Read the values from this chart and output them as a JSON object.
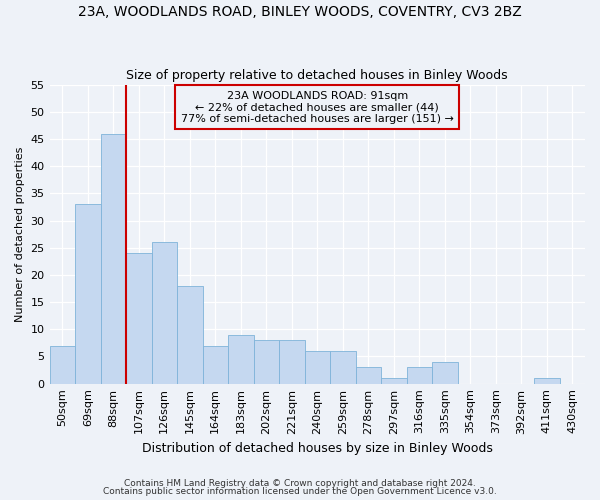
{
  "title": "23A, WOODLANDS ROAD, BINLEY WOODS, COVENTRY, CV3 2BZ",
  "subtitle": "Size of property relative to detached houses in Binley Woods",
  "xlabel": "Distribution of detached houses by size in Binley Woods",
  "ylabel": "Number of detached properties",
  "footer1": "Contains HM Land Registry data © Crown copyright and database right 2024.",
  "footer2": "Contains public sector information licensed under the Open Government Licence v3.0.",
  "bin_labels": [
    "50sqm",
    "69sqm",
    "88sqm",
    "107sqm",
    "126sqm",
    "145sqm",
    "164sqm",
    "183sqm",
    "202sqm",
    "221sqm",
    "240sqm",
    "259sqm",
    "278sqm",
    "297sqm",
    "316sqm",
    "335sqm",
    "354sqm",
    "373sqm",
    "392sqm",
    "411sqm",
    "430sqm"
  ],
  "bar_values": [
    7,
    33,
    46,
    24,
    26,
    18,
    7,
    9,
    8,
    8,
    6,
    6,
    3,
    1,
    3,
    4,
    0,
    0,
    0,
    1,
    0
  ],
  "bar_color": "#c5d8f0",
  "bar_edge_color": "#7fb3d9",
  "ylim": [
    0,
    55
  ],
  "yticks": [
    0,
    5,
    10,
    15,
    20,
    25,
    30,
    35,
    40,
    45,
    50,
    55
  ],
  "red_line_x": 2.5,
  "red_line_color": "#cc0000",
  "annotation_text_line1": "23A WOODLANDS ROAD: 91sqm",
  "annotation_text_line2": "← 22% of detached houses are smaller (44)",
  "annotation_text_line3": "77% of semi-detached houses are larger (151) →",
  "annotation_box_color": "#cc0000",
  "background_color": "#eef2f8",
  "grid_color": "#ffffff",
  "title_fontsize": 10,
  "subtitle_fontsize": 9,
  "ylabel_fontsize": 8,
  "xlabel_fontsize": 9,
  "tick_fontsize": 8,
  "annotation_fontsize": 8
}
